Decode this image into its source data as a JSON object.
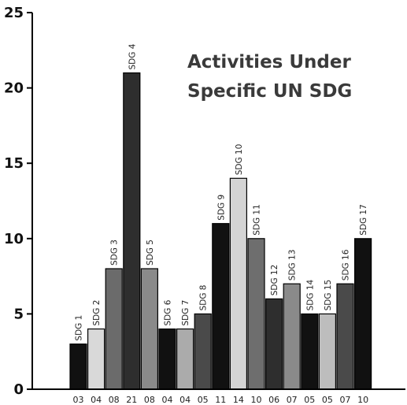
{
  "chart_data": {
    "type": "bar",
    "title": [
      "Activities Under",
      "Specific UN SDG"
    ],
    "categories": [
      "SDG 1",
      "SDG 2",
      "SDG 3",
      "SDG 4",
      "SDG 5",
      "SDG 6",
      "SDG 7",
      "SDG 8",
      "SDG 9",
      "SDG 10",
      "SDG 11",
      "SDG 12",
      "SDG 13",
      "SDG 14",
      "SDG 15",
      "SDG 16",
      "SDG 17"
    ],
    "values": [
      3,
      4,
      8,
      21,
      8,
      4,
      4,
      5,
      11,
      14,
      10,
      6,
      7,
      5,
      5,
      7,
      10
    ],
    "value_labels": [
      "03",
      "04",
      "08",
      "21",
      "08",
      "04",
      "04",
      "05",
      "11",
      "14",
      "10",
      "06",
      "07",
      "05",
      "05",
      "07",
      "10"
    ],
    "bar_colors": [
      "#111111",
      "#d9d9d9",
      "#6b6b6b",
      "#2e2e2e",
      "#8a8a8a",
      "#111111",
      "#ababab",
      "#4a4a4a",
      "#111111",
      "#d4d4d4",
      "#6e6e6e",
      "#2e2e2e",
      "#8a8a8a",
      "#111111",
      "#bdbdbd",
      "#4a4a4a",
      "#111111"
    ],
    "yticks": [
      0,
      5,
      10,
      15,
      20,
      25
    ],
    "ylim": [
      0,
      25
    ],
    "grid": false,
    "xlabel": "",
    "ylabel": ""
  }
}
